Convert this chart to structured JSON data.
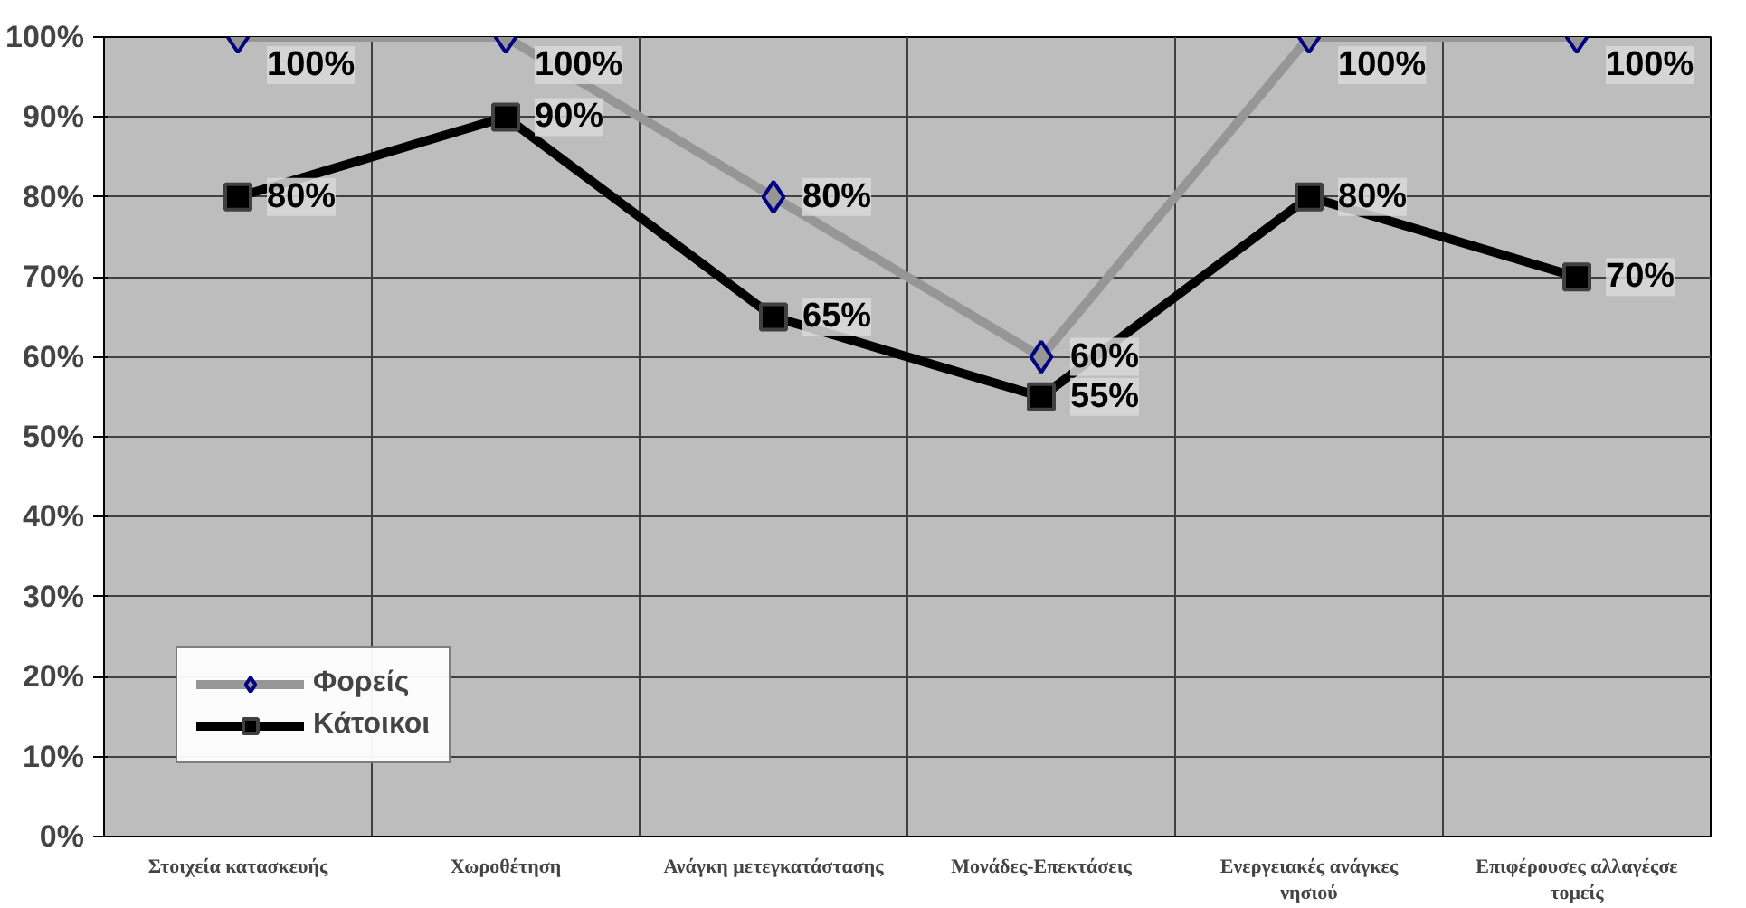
{
  "chart_data": {
    "type": "line",
    "categories": [
      "Στοιχεία κατασκευής",
      "Χωροθέτηση",
      "Ανάγκη μετεγκατάστασης",
      "Μονάδες-Επεκτάσεις",
      "Ενεργειακές ανάγκες νησιού",
      "Επιφέρουσες αλλαγέςσε τομείς"
    ],
    "series": [
      {
        "name": "Φορείς",
        "color": "#969696",
        "marker": "diamond",
        "values": [
          100,
          100,
          80,
          60,
          100,
          100
        ],
        "value_labels": [
          "100%",
          "100%",
          "80%",
          "60%",
          "100%",
          "100%"
        ]
      },
      {
        "name": "Κάτοικοι",
        "color": "#000000",
        "marker": "square",
        "values": [
          80,
          90,
          65,
          55,
          80,
          70
        ],
        "value_labels": [
          "80%",
          "90%",
          "65%",
          "55%",
          "80%",
          "70%"
        ]
      }
    ],
    "ylim": [
      0,
      100
    ],
    "yticks": [
      {
        "value": 0,
        "label": "0%"
      },
      {
        "value": 10,
        "label": "10%"
      },
      {
        "value": 20,
        "label": "20%"
      },
      {
        "value": 30,
        "label": "30%"
      },
      {
        "value": 40,
        "label": "40%"
      },
      {
        "value": 50,
        "label": "50%"
      },
      {
        "value": 60,
        "label": "60%"
      },
      {
        "value": 70,
        "label": "70%"
      },
      {
        "value": 80,
        "label": "80%"
      },
      {
        "value": 90,
        "label": "90%"
      },
      {
        "value": 100,
        "label": "100%"
      }
    ],
    "grid": true,
    "legend": "bottom left"
  }
}
